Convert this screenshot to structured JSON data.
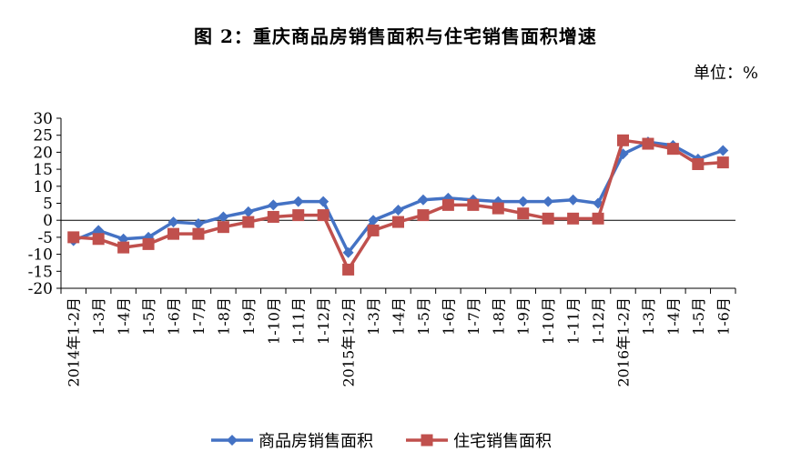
{
  "chart_data": {
    "type": "line",
    "title": "图 2：重庆商品房销售面积与住宅销售面积增速",
    "unit": "单位：%",
    "categories": [
      "2014年1-2月",
      "1-3月",
      "1-4月",
      "1-5月",
      "1-6月",
      "1-7月",
      "1-8月",
      "1-9月",
      "1-10月",
      "1-11月",
      "1-12月",
      "2015年1-2月",
      "1-3月",
      "1-4月",
      "1-5月",
      "1-6月",
      "1-7月",
      "1-8月",
      "1-9月",
      "1-10月",
      "1-11月",
      "1-12月",
      "2016年1-2月",
      "1-3月",
      "1-4月",
      "1-5月",
      "1-6月"
    ],
    "ylim": [
      -20,
      30
    ],
    "yticks": [
      30,
      25,
      20,
      15,
      10,
      5,
      0,
      -5,
      -10,
      -15,
      -20
    ],
    "series": [
      {
        "name": "商品房销售面积",
        "color": "#4472C4",
        "marker": "diamond",
        "values": [
          -6,
          -3,
          -5.5,
          -5,
          -0.5,
          -1,
          1,
          2.5,
          4.5,
          5.5,
          5.5,
          -9.5,
          0,
          3,
          6,
          6.5,
          6,
          5.5,
          5.5,
          5.5,
          6,
          5,
          19.5,
          23,
          22,
          18,
          20.5
        ]
      },
      {
        "name": "住宅销售面积",
        "color": "#C0504D",
        "marker": "square",
        "values": [
          -5,
          -5.5,
          -8,
          -7,
          -4,
          -4,
          -2,
          -0.5,
          1,
          1.5,
          1.5,
          -14.5,
          -3,
          -0.5,
          1.5,
          4.5,
          4.5,
          3.5,
          2,
          0.5,
          0.5,
          0.5,
          23.5,
          22.5,
          21,
          16.5,
          17
        ]
      }
    ],
    "grid": false,
    "legend": "bottom"
  }
}
